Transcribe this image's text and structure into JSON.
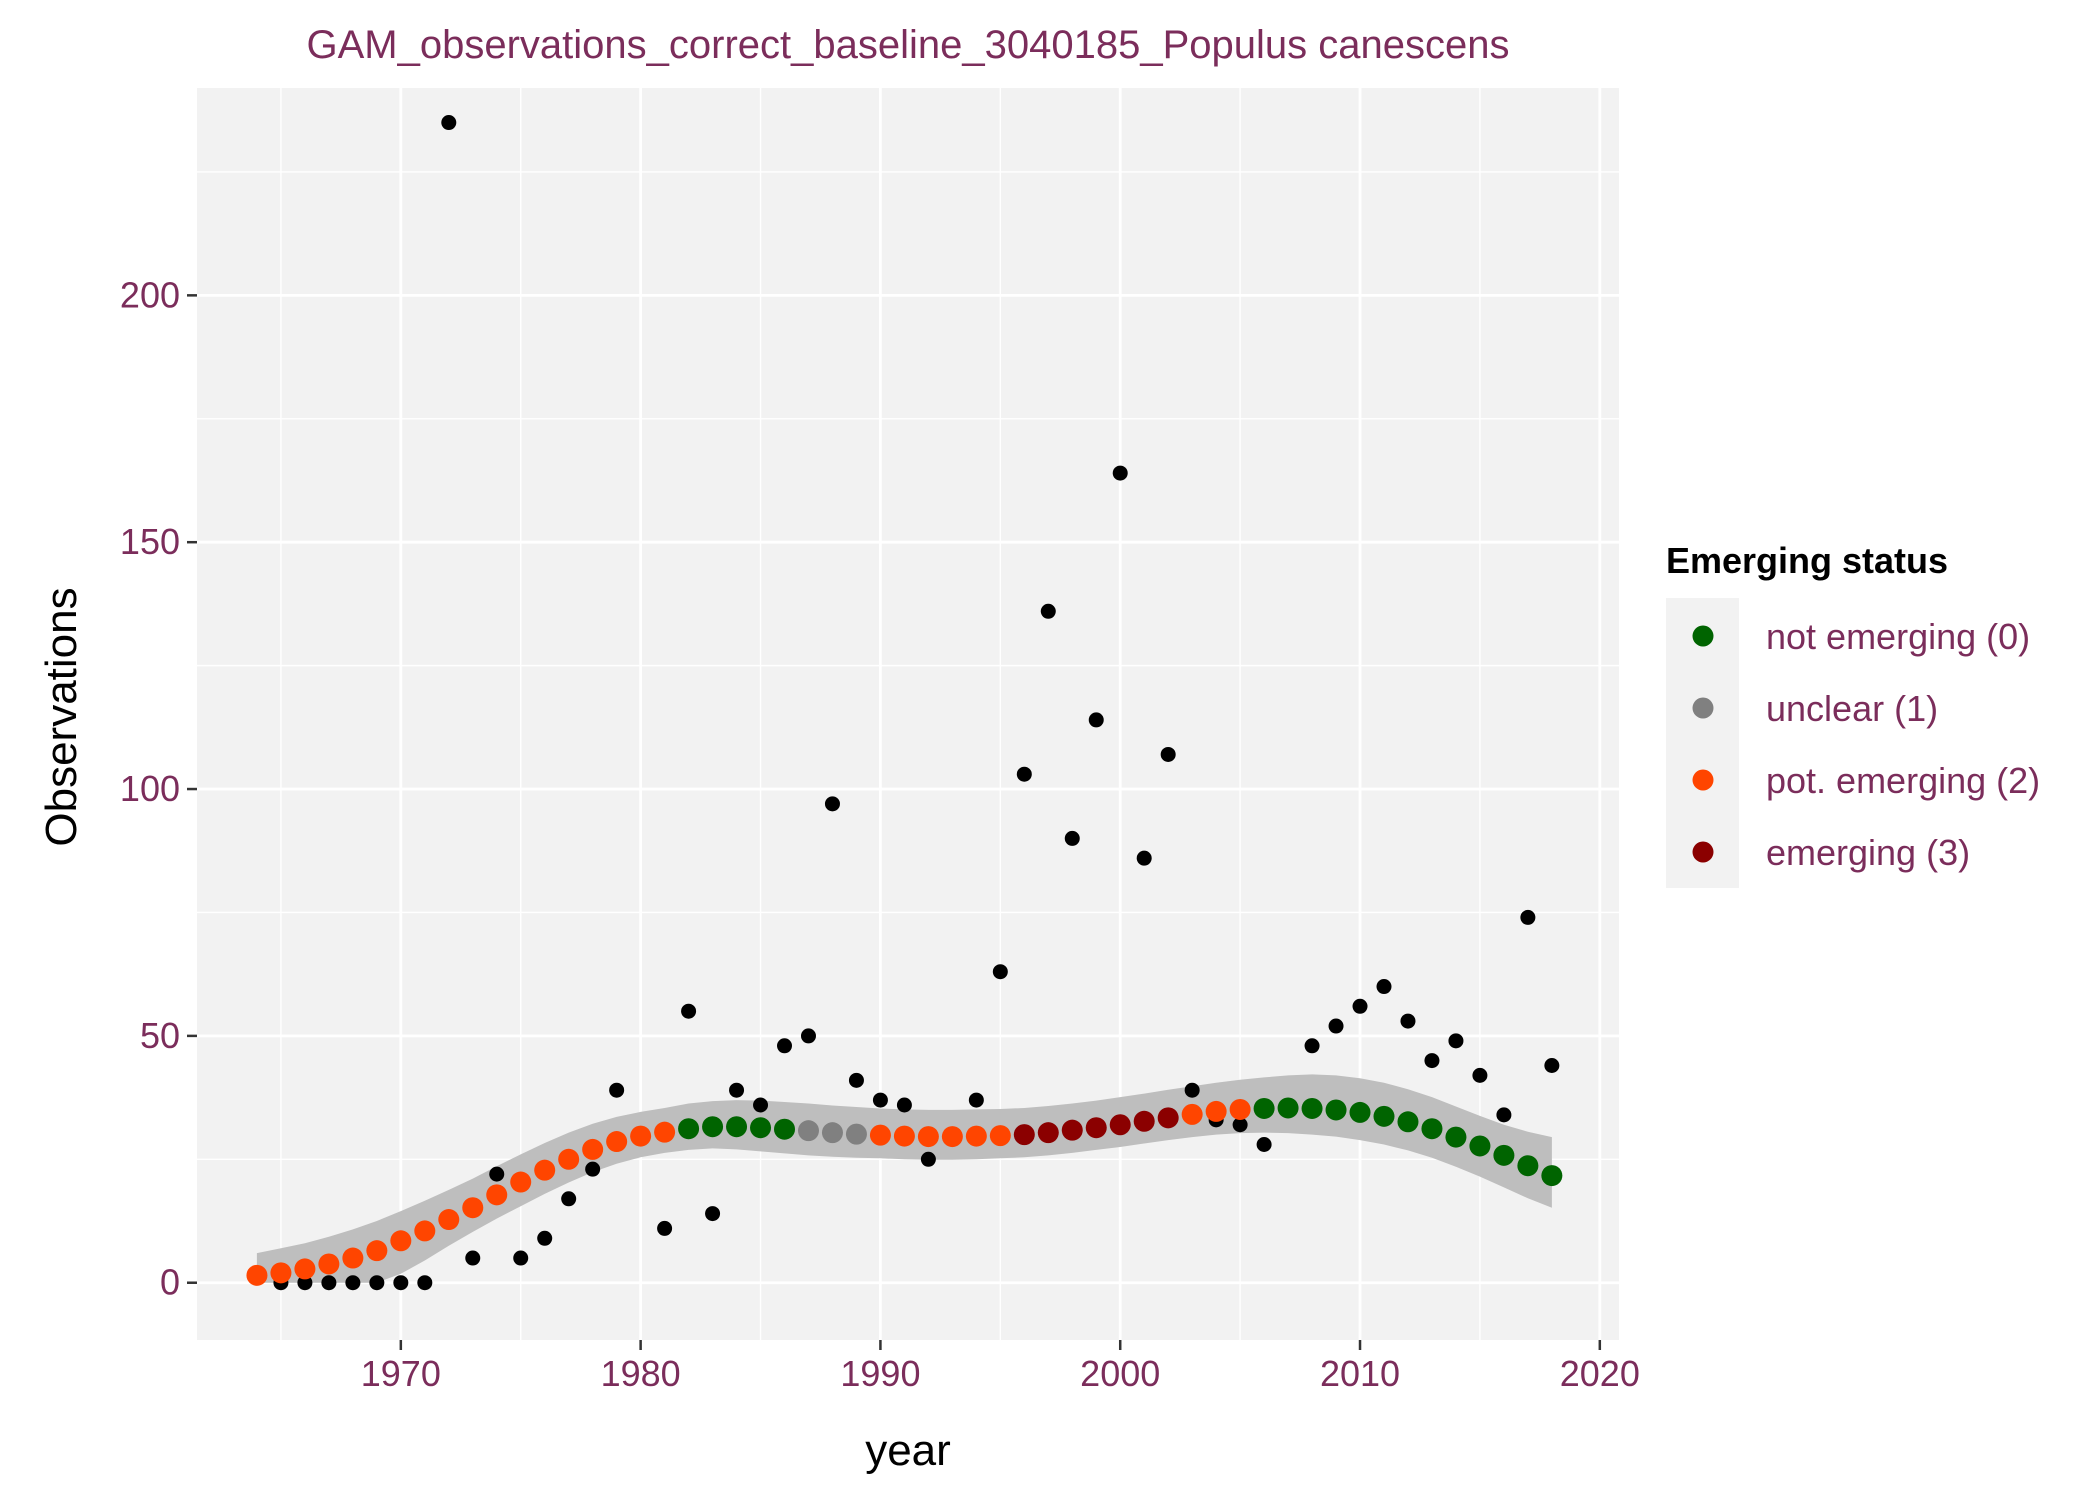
{
  "chart_data": {
    "type": "scatter",
    "title": "GAM_observations_correct_baseline_3040185_Populus canescens",
    "xlabel": "year",
    "ylabel": "Observations",
    "xlim": [
      1961.5,
      2020.8
    ],
    "ylim": [
      -11.6,
      242
    ],
    "x_ticks": [
      1970,
      1980,
      1990,
      2000,
      2010,
      2020
    ],
    "y_ticks": [
      0,
      50,
      100,
      150,
      200
    ],
    "grid": true,
    "legend": {
      "title": "Emerging status",
      "placement": "right",
      "entries": [
        {
          "label": "not emerging (0)",
          "color": "#006400"
        },
        {
          "label": "unclear (1)",
          "color": "#808080"
        },
        {
          "label": "pot. emerging (2)",
          "color": "#ff4500"
        },
        {
          "label": "emerging (3)",
          "color": "#8b0000"
        }
      ]
    },
    "colors": {
      "panel_background": "#f2f2f2",
      "gridline": "#ffffff",
      "band": "#bebebe",
      "observation": "#000000"
    },
    "observations": {
      "x": [
        1965,
        1966,
        1967,
        1968,
        1969,
        1970,
        1971,
        1972,
        1973,
        1974,
        1975,
        1976,
        1977,
        1978,
        1979,
        1981,
        1982,
        1983,
        1984,
        1985,
        1986,
        1987,
        1988,
        1989,
        1990,
        1991,
        1992,
        1994,
        1995,
        1996,
        1997,
        1998,
        1999,
        2000,
        2001,
        2002,
        2003,
        2004,
        2005,
        2006,
        2008,
        2009,
        2010,
        2011,
        2012,
        2013,
        2014,
        2015,
        2016,
        2017,
        2018
      ],
      "y": [
        0,
        0,
        0,
        0,
        0,
        0,
        0,
        235,
        5,
        22,
        5,
        9,
        17,
        23,
        39,
        11,
        55,
        14,
        39,
        36,
        48,
        50,
        97,
        41,
        37,
        36,
        25,
        37,
        63,
        103,
        136,
        90,
        114,
        164,
        86,
        107,
        39,
        33,
        32,
        28,
        48,
        52,
        56,
        60,
        53,
        45,
        49,
        42,
        34,
        74,
        44
      ]
    },
    "gam_fit": {
      "x": [
        1964,
        1965,
        1966,
        1967,
        1968,
        1969,
        1970,
        1971,
        1972,
        1973,
        1974,
        1975,
        1976,
        1977,
        1978,
        1979,
        1980,
        1981,
        1982,
        1983,
        1984,
        1985,
        1986,
        1987,
        1988,
        1989,
        1990,
        1991,
        1992,
        1993,
        1994,
        1995,
        1996,
        1997,
        1998,
        1999,
        2000,
        2001,
        2002,
        2003,
        2004,
        2005,
        2006,
        2007,
        2008,
        2009,
        2010,
        2011,
        2012,
        2013,
        2014,
        2015,
        2016,
        2017,
        2018
      ],
      "y": [
        1.5,
        2,
        2.8,
        3.8,
        5,
        6.5,
        8.5,
        10.5,
        12.8,
        15.2,
        17.8,
        20.4,
        22.8,
        25,
        27,
        28.6,
        29.7,
        30.5,
        31.2,
        31.6,
        31.6,
        31.4,
        31.1,
        30.8,
        30.4,
        30.1,
        29.9,
        29.7,
        29.6,
        29.6,
        29.7,
        29.8,
        30,
        30.4,
        30.9,
        31.4,
        32,
        32.7,
        33.4,
        34.1,
        34.7,
        35.1,
        35.3,
        35.4,
        35.3,
        35,
        34.5,
        33.7,
        32.6,
        31.2,
        29.5,
        27.7,
        25.8,
        23.7,
        21.7
      ],
      "lower": [
        0,
        0,
        0,
        0,
        0,
        0,
        1.8,
        4.5,
        7.5,
        10.3,
        13,
        15.5,
        18,
        20.3,
        22.4,
        24.1,
        25.4,
        26.3,
        26.9,
        27.2,
        27,
        26.6,
        26.2,
        25.8,
        25.5,
        25.3,
        25.2,
        25,
        24.9,
        24.9,
        25,
        25.2,
        25.4,
        25.8,
        26.3,
        26.9,
        27.5,
        28.2,
        28.9,
        29.5,
        30,
        30.3,
        30.4,
        30.3,
        30,
        29.6,
        28.9,
        28,
        26.8,
        25.3,
        23.5,
        21.5,
        19.3,
        17.1,
        15.2
      ],
      "upper": [
        6,
        7,
        8,
        9.3,
        10.8,
        12.5,
        14.5,
        16.6,
        18.8,
        21.1,
        23.6,
        26,
        28.3,
        30.4,
        32.2,
        33.6,
        34.6,
        35.4,
        36.3,
        36.8,
        37,
        36.9,
        36.6,
        36.3,
        35.9,
        35.6,
        35.3,
        35.1,
        35,
        35,
        35.1,
        35.2,
        35.4,
        35.8,
        36.3,
        36.9,
        37.6,
        38.3,
        39.1,
        39.8,
        40.5,
        41.1,
        41.6,
        42,
        42.2,
        42,
        41.4,
        40.5,
        39.2,
        37.6,
        35.7,
        33.8,
        32,
        30.6,
        29.5
      ],
      "status": [
        2,
        2,
        2,
        2,
        2,
        2,
        2,
        2,
        2,
        2,
        2,
        2,
        2,
        2,
        2,
        2,
        2,
        2,
        0,
        0,
        0,
        0,
        0,
        1,
        1,
        1,
        2,
        2,
        2,
        2,
        2,
        2,
        3,
        3,
        3,
        3,
        3,
        3,
        3,
        2,
        2,
        2,
        0,
        0,
        0,
        0,
        0,
        0,
        0,
        0,
        0,
        0,
        0,
        0,
        0
      ]
    }
  }
}
